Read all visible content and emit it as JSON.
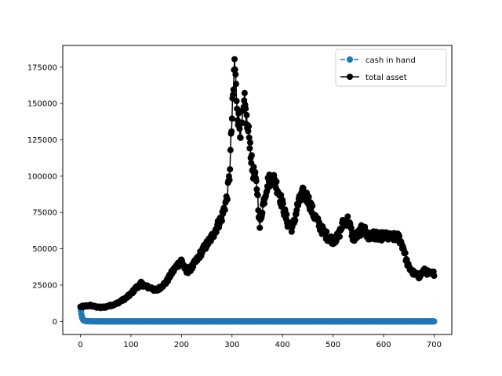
{
  "chart_data": {
    "type": "line",
    "title": "",
    "xlabel": "",
    "ylabel": "",
    "xlim": [
      -35,
      735
    ],
    "ylim": [
      -9000,
      190000
    ],
    "xticks": [
      0,
      100,
      200,
      300,
      400,
      500,
      600,
      700
    ],
    "yticks": [
      0,
      25000,
      50000,
      75000,
      100000,
      125000,
      150000,
      175000
    ],
    "grid": false,
    "legend_position": "upper right",
    "series": [
      {
        "name": "cash in hand",
        "color": "#1f77b4",
        "style": "dashed",
        "marker": "circle",
        "x_start": 0,
        "x_end": 700,
        "x_step": 1,
        "keypoints": [
          [
            0,
            10000
          ],
          [
            1,
            7500
          ],
          [
            2,
            5000
          ],
          [
            3,
            3200
          ],
          [
            4,
            2000
          ],
          [
            5,
            1200
          ],
          [
            7,
            600
          ],
          [
            10,
            250
          ],
          [
            15,
            100
          ],
          [
            25,
            50
          ],
          [
            50,
            30
          ],
          [
            700,
            30
          ]
        ]
      },
      {
        "name": "total asset",
        "color": "#000000",
        "style": "solid",
        "marker": "circle",
        "x_start": 0,
        "x_end": 700,
        "x_step": 1,
        "keypoints": [
          [
            0,
            10000
          ],
          [
            10,
            10500
          ],
          [
            20,
            11000
          ],
          [
            30,
            10000
          ],
          [
            40,
            9500
          ],
          [
            50,
            10000
          ],
          [
            60,
            11000
          ],
          [
            70,
            12000
          ],
          [
            80,
            14000
          ],
          [
            90,
            16000
          ],
          [
            100,
            19000
          ],
          [
            110,
            23000
          ],
          [
            120,
            26000
          ],
          [
            130,
            24000
          ],
          [
            140,
            23000
          ],
          [
            150,
            21000
          ],
          [
            160,
            24000
          ],
          [
            170,
            27000
          ],
          [
            180,
            33000
          ],
          [
            190,
            38000
          ],
          [
            200,
            42000
          ],
          [
            210,
            34000
          ],
          [
            220,
            37000
          ],
          [
            230,
            42000
          ],
          [
            240,
            48000
          ],
          [
            250,
            53000
          ],
          [
            260,
            58000
          ],
          [
            270,
            65000
          ],
          [
            280,
            72000
          ],
          [
            290,
            85000
          ],
          [
            295,
            100000
          ],
          [
            300,
            140000
          ],
          [
            303,
            160000
          ],
          [
            305,
            180000
          ],
          [
            308,
            160000
          ],
          [
            312,
            140000
          ],
          [
            318,
            130000
          ],
          [
            325,
            150000
          ],
          [
            330,
            135000
          ],
          [
            335,
            125000
          ],
          [
            340,
            105000
          ],
          [
            345,
            100000
          ],
          [
            350,
            90000
          ],
          [
            355,
            65000
          ],
          [
            360,
            78000
          ],
          [
            370,
            95000
          ],
          [
            380,
            100000
          ],
          [
            390,
            92000
          ],
          [
            400,
            80000
          ],
          [
            410,
            68000
          ],
          [
            420,
            64000
          ],
          [
            430,
            80000
          ],
          [
            440,
            88000
          ],
          [
            450,
            85000
          ],
          [
            460,
            75000
          ],
          [
            470,
            68000
          ],
          [
            480,
            62000
          ],
          [
            490,
            58000
          ],
          [
            500,
            56000
          ],
          [
            510,
            58000
          ],
          [
            520,
            68000
          ],
          [
            530,
            70000
          ],
          [
            540,
            57000
          ],
          [
            550,
            60000
          ],
          [
            560,
            65000
          ],
          [
            570,
            57000
          ],
          [
            580,
            60000
          ],
          [
            590,
            58000
          ],
          [
            600,
            59000
          ],
          [
            610,
            58000
          ],
          [
            620,
            58000
          ],
          [
            630,
            58000
          ],
          [
            640,
            50000
          ],
          [
            645,
            42000
          ],
          [
            650,
            37000
          ],
          [
            660,
            33000
          ],
          [
            670,
            31000
          ],
          [
            680,
            35000
          ],
          [
            690,
            33000
          ],
          [
            700,
            33000
          ]
        ]
      }
    ]
  }
}
